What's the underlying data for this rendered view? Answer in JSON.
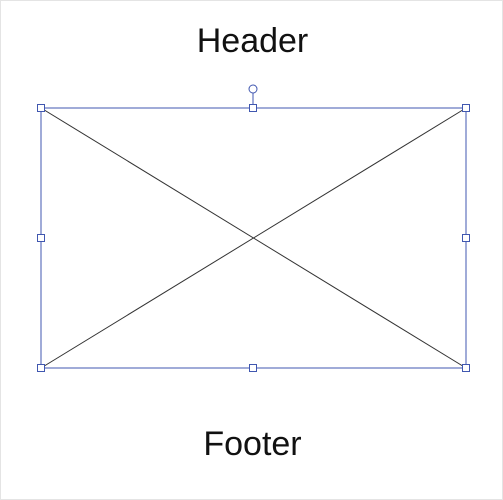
{
  "header": {
    "text": "Header"
  },
  "footer": {
    "text": "Footer"
  },
  "colors": {
    "selection": "#4057b0",
    "cross_lines": "#333333",
    "text": "#111111",
    "background": "#ffffff"
  },
  "icons": {
    "rotate_handle": "rotate-handle-icon",
    "resize_handle": "resize-handle-icon"
  }
}
